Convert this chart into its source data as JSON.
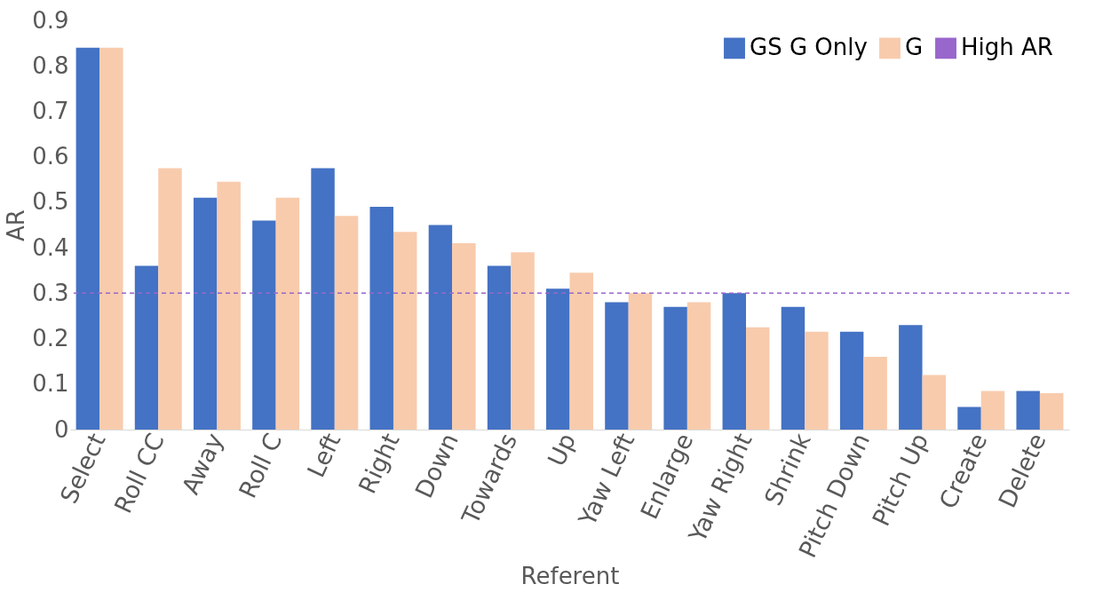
{
  "chart_data": {
    "type": "bar",
    "xlabel": "Referent",
    "ylabel": "AR",
    "categories": [
      "Select",
      "Roll CC",
      "Away",
      "Roll C",
      "Left",
      "Right",
      "Down",
      "Towards",
      "Up",
      "Yaw Left",
      "Enlarge",
      "Yaw Right",
      "Shrink",
      "Pitch Down",
      "Pitch Up",
      "Create",
      "Delete"
    ],
    "series": [
      {
        "name": "GS G Only",
        "color": "#4472c4",
        "values": [
          0.84,
          0.36,
          0.51,
          0.46,
          0.575,
          0.49,
          0.45,
          0.36,
          0.31,
          0.28,
          0.27,
          0.3,
          0.27,
          0.215,
          0.23,
          0.05,
          0.085
        ]
      },
      {
        "name": "G",
        "color": "#f8cbad",
        "values": [
          0.84,
          0.575,
          0.545,
          0.51,
          0.47,
          0.435,
          0.41,
          0.39,
          0.345,
          0.3,
          0.28,
          0.225,
          0.215,
          0.16,
          0.12,
          0.085,
          0.08
        ]
      }
    ],
    "ref_lines": [
      {
        "axis": "y",
        "value": 0.3,
        "label": "High AR",
        "color": "#9966cc",
        "line_style": "dashed"
      }
    ],
    "ylim": [
      0,
      0.9
    ],
    "yticks": [
      0,
      0.1,
      0.2,
      0.3,
      0.4,
      0.5,
      0.6,
      0.7,
      0.8,
      0.9
    ],
    "grid": false,
    "legend": "top right"
  }
}
